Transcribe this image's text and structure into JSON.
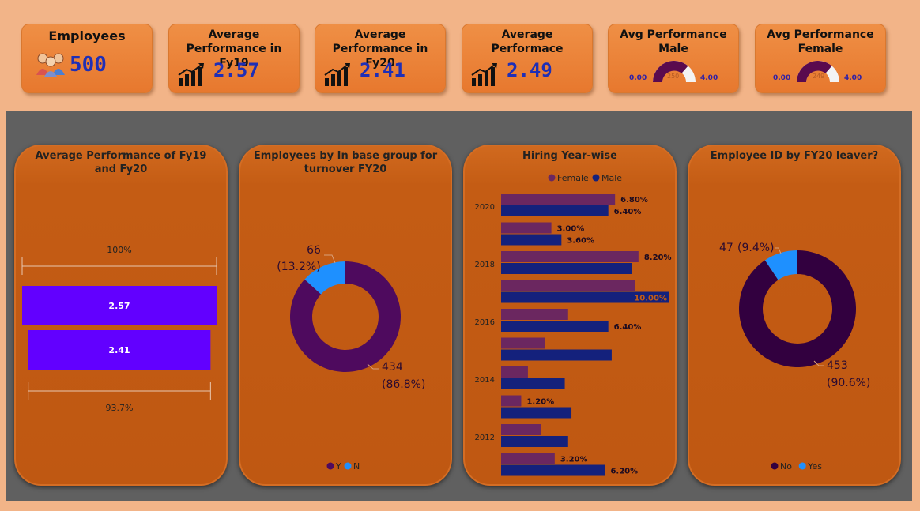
{
  "kpis": {
    "employees": {
      "title": "Employees",
      "value": "500"
    },
    "fy19": {
      "title": "Average Performance in Fy19",
      "value": "2.57"
    },
    "fy20": {
      "title": "Average Performance in Fy20",
      "value": "2.41"
    },
    "avg": {
      "title": "Average Performace",
      "value": "2.49"
    },
    "male": {
      "title": "Avg Performance Male",
      "min": "0.00",
      "max": "4.00",
      "target": "250"
    },
    "female": {
      "title": "Avg Performance Female",
      "min": "0.00",
      "max": "4.00",
      "target": "249"
    }
  },
  "panels": {
    "p1": {
      "title": "Average Performance of Fy19 and Fy20"
    },
    "p2": {
      "title": "Employees by In base group for turnover FY20"
    },
    "p3": {
      "title": "Hiring Year-wise"
    },
    "p4": {
      "title": "Employee ID by FY20 leaver?"
    }
  },
  "chart_data": [
    {
      "type": "bar",
      "title": "Average Performance of Fy19 and Fy20",
      "categories": [
        "Fy19",
        "Fy20"
      ],
      "values": [
        2.57,
        2.41
      ],
      "labels": [
        "2.57",
        "2.41"
      ],
      "top_ratio_label": "100%",
      "bottom_ratio_label": "93.7%",
      "colors": [
        "#6200ff",
        "#6200ff"
      ]
    },
    {
      "type": "pie",
      "title": "Employees by In base group for turnover FY20",
      "categories": [
        "Y",
        "N"
      ],
      "values": [
        434,
        66
      ],
      "labels": [
        "434",
        "66"
      ],
      "pct_labels": [
        "(86.8%)",
        "(13.2%)"
      ],
      "colors": [
        "#4e0a5e",
        "#1e90ff"
      ],
      "legend": [
        "Y",
        "N"
      ]
    },
    {
      "type": "bar",
      "title": "Hiring Year-wise",
      "orientation": "horizontal",
      "categories": [
        "2020",
        "2019",
        "2018",
        "2017",
        "2016",
        "2015",
        "2014",
        "2013",
        "2012",
        "2011"
      ],
      "tick_labels": [
        "2020",
        "2018",
        "2016",
        "2014",
        "2012"
      ],
      "series": [
        {
          "name": "Female",
          "color": "#6b2760",
          "values": [
            6.8,
            3.0,
            8.2,
            8.0,
            4.0,
            2.6,
            1.6,
            1.2,
            2.4,
            3.2
          ],
          "labels": [
            "6.80%",
            "3.00%",
            "8.20%",
            "",
            "",
            "",
            "",
            "1.20%",
            "",
            "3.20%"
          ]
        },
        {
          "name": "Male",
          "color": "#14217c",
          "values": [
            6.4,
            3.6,
            7.8,
            10.0,
            6.4,
            6.6,
            3.8,
            4.2,
            4.0,
            6.2
          ],
          "labels": [
            "6.40%",
            "3.60%",
            "",
            "10.00%",
            "6.40%",
            "",
            "",
            "",
            "",
            "6.20%"
          ]
        }
      ],
      "legend": [
        "Female",
        "Male"
      ],
      "xlim": [
        0,
        10
      ]
    },
    {
      "type": "pie",
      "title": "Employee ID by FY20 leaver?",
      "categories": [
        "No",
        "Yes"
      ],
      "values": [
        453,
        47
      ],
      "labels": [
        "453",
        "47"
      ],
      "pct_labels": [
        "(90.6%)",
        "(9.4%)"
      ],
      "colors": [
        "#32003f",
        "#1e90ff"
      ],
      "legend": [
        "No",
        "Yes"
      ]
    }
  ]
}
